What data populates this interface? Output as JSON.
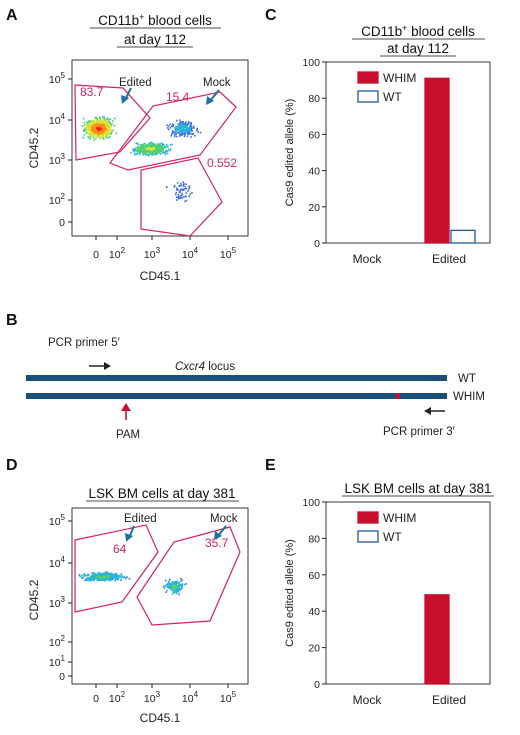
{
  "panels": {
    "A": {
      "letter": "A",
      "title_line1": "CD11b",
      "title_sup": "+",
      "title_line1_rest": " blood cells",
      "title_line2": "at day 112",
      "xlabel": "CD45.1",
      "ylabel": "CD45.2",
      "gates": {
        "edited_pct": "83.7",
        "mock_pct": "15.4",
        "low_pct": "0.552"
      },
      "labels": {
        "edited": "Edited",
        "mock": "Mock"
      },
      "yticks": [
        "10",
        "10",
        "10",
        "10",
        "0"
      ],
      "ytick_exp": [
        "5",
        "4",
        "3",
        "2",
        ""
      ],
      "xticks": [
        "0",
        "10",
        "10",
        "10",
        "10"
      ],
      "xtick_exp": [
        "",
        "2",
        "3",
        "4",
        "5"
      ]
    },
    "B": {
      "letter": "B",
      "primer5": "PCR primer 5′",
      "locus_italic": "Cxcr4",
      "locus_rest": " locus",
      "wt": "WT",
      "whim": "WHIM",
      "pam": "PAM",
      "primer3": "PCR primer 3′"
    },
    "C": {
      "letter": "C",
      "title_line1": "CD11b",
      "title_sup": "+",
      "title_line1_rest": " blood cells",
      "title_line2": "at day 112"
    },
    "D": {
      "letter": "D",
      "title": "LSK BM cells at day 381",
      "xlabel": "CD45.1",
      "ylabel": "CD45.2",
      "gates": {
        "edited_pct": "64",
        "mock_pct": "35.7"
      },
      "labels": {
        "edited": "Edited",
        "mock": "Mock"
      },
      "yticks": [
        "10",
        "10",
        "10",
        "10",
        "10",
        "0"
      ],
      "ytick_exp": [
        "5",
        "4",
        "3",
        "2",
        "1",
        ""
      ],
      "xticks": [
        "0",
        "10",
        "10",
        "10",
        "10"
      ],
      "xtick_exp": [
        "",
        "2",
        "3",
        "4",
        "5"
      ]
    },
    "E": {
      "letter": "E",
      "title": "LSK BM cells at day 381"
    }
  },
  "colors": {
    "whim": "#c8102e",
    "wt": "#1f5a96",
    "gate": "#d6216a",
    "track": "#1b4f7a",
    "arrow_blue": "#1f6f9f"
  },
  "chart_data": [
    {
      "panel": "C",
      "type": "bar",
      "categories": [
        "Mock",
        "Edited"
      ],
      "series": [
        {
          "name": "WHIM",
          "values": [
            0,
            91
          ]
        },
        {
          "name": "WT",
          "values": [
            0,
            7
          ]
        }
      ],
      "title": "CD11b+ blood cells at day 112",
      "xlabel": "",
      "ylabel": "Cas9 edited allele (%)",
      "ylim": [
        0,
        100
      ],
      "yticks": [
        0,
        20,
        40,
        60,
        80,
        100
      ],
      "legend": "top-left",
      "grid": false
    },
    {
      "panel": "E",
      "type": "bar",
      "categories": [
        "Mock",
        "Edited"
      ],
      "series": [
        {
          "name": "WHIM",
          "values": [
            0,
            49
          ]
        },
        {
          "name": "WT",
          "values": [
            0,
            0
          ]
        }
      ],
      "title": "LSK BM cells at day 381",
      "xlabel": "",
      "ylabel": "Cas9 edited allele (%)",
      "ylim": [
        0,
        100
      ],
      "yticks": [
        0,
        20,
        40,
        60,
        80,
        100
      ],
      "legend": "top-left",
      "grid": false
    }
  ]
}
